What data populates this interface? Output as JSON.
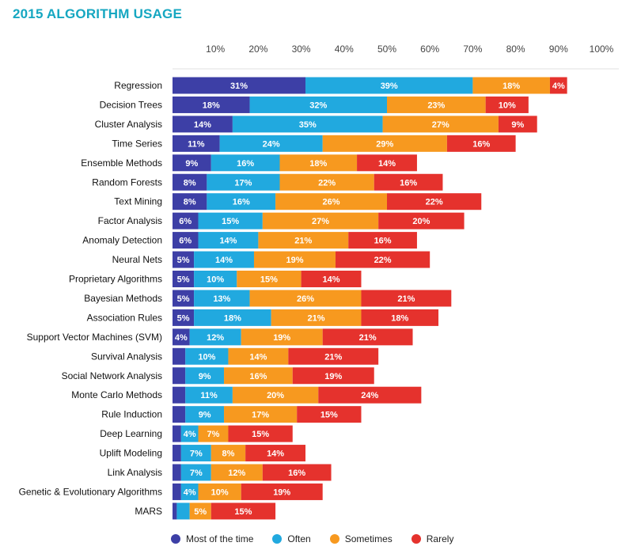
{
  "chart_data": {
    "type": "bar",
    "title": "2015 ALGORITHM USAGE",
    "orientation": "horizontal",
    "stacked": true,
    "xlim": [
      0,
      100
    ],
    "x_ticks": [
      "10%",
      "20%",
      "30%",
      "40%",
      "50%",
      "60%",
      "70%",
      "80%",
      "90%",
      "100%"
    ],
    "grid": false,
    "legend_position": "bottom",
    "categories": [
      "Regression",
      "Decision Trees",
      "Cluster Analysis",
      "Time Series",
      "Ensemble Methods",
      "Random Forests",
      "Text Mining",
      "Factor Analysis",
      "Anomaly Detection",
      "Neural Nets",
      "Proprietary Algorithms",
      "Bayesian Methods",
      "Association Rules",
      "Support Vector Machines (SVM)",
      "Survival Analysis",
      "Social Network Analysis",
      "Monte Carlo Methods",
      "Rule Induction",
      "Deep Learning",
      "Uplift Modeling",
      "Link Analysis",
      "Genetic & Evolutionary Algorithms",
      "MARS"
    ],
    "series": [
      {
        "name": "Most of the time",
        "color": "#3d3fa6",
        "values": [
          31,
          18,
          14,
          11,
          9,
          8,
          8,
          6,
          6,
          5,
          5,
          5,
          5,
          4,
          3,
          3,
          3,
          3,
          2,
          2,
          2,
          2,
          1
        ],
        "labels": [
          "31%",
          "18%",
          "14%",
          "11%",
          "9%",
          "8%",
          "8%",
          "6%",
          "6%",
          "5%",
          "5%",
          "5%",
          "5%",
          "4%",
          "",
          "",
          "",
          "",
          "",
          "",
          "",
          "",
          ""
        ]
      },
      {
        "name": "Often",
        "color": "#21a9df",
        "values": [
          39,
          32,
          35,
          24,
          16,
          17,
          16,
          15,
          14,
          14,
          10,
          13,
          18,
          12,
          10,
          9,
          11,
          9,
          4,
          7,
          7,
          4,
          3
        ],
        "labels": [
          "39%",
          "32%",
          "35%",
          "24%",
          "16%",
          "17%",
          "16%",
          "15%",
          "14%",
          "14%",
          "10%",
          "13%",
          "18%",
          "12%",
          "10%",
          "9%",
          "11%",
          "9%",
          "4%",
          "7%",
          "7%",
          "4%",
          ""
        ]
      },
      {
        "name": "Sometimes",
        "color": "#f7991f",
        "values": [
          18,
          23,
          27,
          29,
          18,
          22,
          26,
          27,
          21,
          19,
          15,
          26,
          21,
          19,
          14,
          16,
          20,
          17,
          7,
          8,
          12,
          10,
          5
        ],
        "labels": [
          "18%",
          "23%",
          "27%",
          "29%",
          "18%",
          "22%",
          "26%",
          "27%",
          "21%",
          "19%",
          "15%",
          "26%",
          "21%",
          "19%",
          "14%",
          "16%",
          "20%",
          "17%",
          "7%",
          "8%",
          "12%",
          "10%",
          "5%"
        ]
      },
      {
        "name": "Rarely",
        "color": "#e5322d",
        "values": [
          4,
          10,
          9,
          16,
          14,
          16,
          22,
          20,
          16,
          22,
          14,
          21,
          18,
          21,
          21,
          19,
          24,
          15,
          15,
          14,
          16,
          19,
          15
        ],
        "labels": [
          "4%",
          "10%",
          "9%",
          "16%",
          "14%",
          "16%",
          "22%",
          "20%",
          "16%",
          "22%",
          "14%",
          "21%",
          "18%",
          "21%",
          "21%",
          "19%",
          "24%",
          "15%",
          "15%",
          "14%",
          "16%",
          "19%",
          "15%"
        ]
      }
    ]
  }
}
